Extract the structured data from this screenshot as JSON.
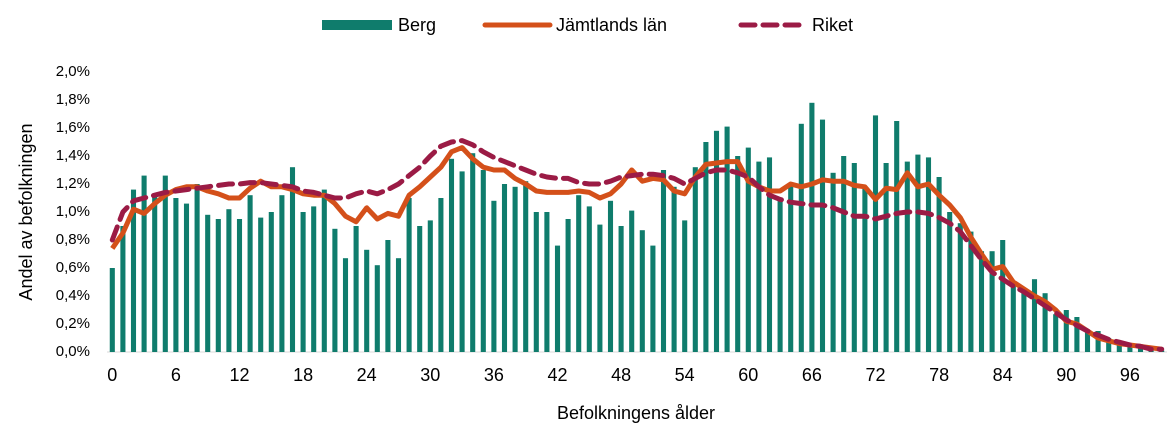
{
  "chart_data": {
    "type": "combo",
    "x_label": "Befolkningens ålder",
    "y_label": "Andel av befolkningen",
    "categories": [
      0,
      null,
      null,
      null,
      null,
      null,
      6,
      null,
      null,
      null,
      null,
      null,
      12,
      null,
      null,
      null,
      null,
      null,
      18,
      null,
      null,
      null,
      null,
      null,
      24,
      null,
      null,
      null,
      null,
      null,
      30,
      null,
      null,
      null,
      null,
      null,
      36,
      null,
      null,
      null,
      null,
      null,
      42,
      null,
      null,
      null,
      null,
      null,
      48,
      null,
      null,
      null,
      null,
      null,
      54,
      null,
      null,
      null,
      null,
      null,
      60,
      null,
      null,
      null,
      null,
      null,
      66,
      null,
      null,
      null,
      null,
      null,
      72,
      null,
      null,
      null,
      null,
      null,
      78,
      null,
      null,
      null,
      null,
      null,
      84,
      null,
      null,
      null,
      null,
      null,
      90,
      null,
      null,
      null,
      null,
      null,
      96,
      null,
      null,
      null
    ],
    "ylim": [
      0,
      2.0
    ],
    "yticks": [
      {
        "value": 0,
        "label": "0,0%"
      },
      {
        "value": 0.2,
        "label": "0,2%"
      },
      {
        "value": 0.4,
        "label": "0,4%"
      },
      {
        "value": 0.6,
        "label": "0,6%"
      },
      {
        "value": 0.8,
        "label": "0,8%"
      },
      {
        "value": 1.0,
        "label": "1,0%"
      },
      {
        "value": 1.2,
        "label": "1,2%"
      },
      {
        "value": 1.4,
        "label": "1,4%"
      },
      {
        "value": 1.6,
        "label": "1,6%"
      },
      {
        "value": 1.8,
        "label": "1,8%"
      },
      {
        "value": 2.0,
        "label": "2,0%"
      }
    ],
    "legend": "top",
    "series": [
      {
        "name": "Berg",
        "type": "bar",
        "color": "#0f7c6c",
        "values": [
          0.6,
          0.9,
          1.16,
          1.26,
          1.12,
          1.26,
          1.1,
          1.06,
          1.2,
          0.98,
          0.95,
          1.02,
          0.95,
          1.12,
          0.96,
          1.0,
          1.12,
          1.32,
          1.0,
          1.04,
          1.16,
          0.88,
          0.67,
          0.9,
          0.73,
          0.62,
          0.8,
          0.67,
          1.1,
          0.9,
          0.94,
          1.1,
          1.38,
          1.29,
          1.42,
          1.3,
          1.08,
          1.2,
          1.18,
          1.22,
          1.0,
          1.0,
          0.76,
          0.95,
          1.12,
          1.04,
          0.91,
          1.08,
          0.9,
          1.01,
          0.87,
          0.76,
          1.3,
          1.18,
          0.94,
          1.32,
          1.5,
          1.58,
          1.61,
          1.4,
          1.46,
          1.36,
          1.39,
          1.1,
          1.2,
          1.63,
          1.78,
          1.66,
          1.28,
          1.4,
          1.35,
          1.18,
          1.69,
          1.35,
          1.65,
          1.36,
          1.41,
          1.39,
          1.25,
          1.0,
          0.92,
          0.86,
          0.72,
          0.72,
          0.8,
          0.5,
          0.45,
          0.52,
          0.42,
          0.27,
          0.3,
          0.25,
          0.14,
          0.15,
          0.1,
          0.07,
          0.05,
          0.03,
          0.02,
          0.01
        ]
      },
      {
        "name": "Jämtlands län",
        "type": "line",
        "style": "solid",
        "color": "#d4501a",
        "values": [
          0.74,
          0.85,
          1.02,
          0.99,
          1.06,
          1.12,
          1.16,
          1.18,
          1.18,
          1.15,
          1.13,
          1.1,
          1.1,
          1.17,
          1.22,
          1.18,
          1.18,
          1.16,
          1.13,
          1.12,
          1.12,
          1.06,
          0.97,
          0.93,
          1.03,
          0.95,
          0.99,
          0.97,
          1.12,
          1.18,
          1.25,
          1.32,
          1.43,
          1.46,
          1.38,
          1.32,
          1.3,
          1.3,
          1.24,
          1.2,
          1.15,
          1.14,
          1.14,
          1.14,
          1.15,
          1.14,
          1.1,
          1.13,
          1.2,
          1.3,
          1.22,
          1.24,
          1.23,
          1.15,
          1.13,
          1.25,
          1.34,
          1.35,
          1.36,
          1.36,
          1.22,
          1.18,
          1.15,
          1.15,
          1.2,
          1.18,
          1.2,
          1.23,
          1.22,
          1.22,
          1.19,
          1.18,
          1.09,
          1.17,
          1.16,
          1.28,
          1.18,
          1.2,
          1.12,
          1.05,
          0.96,
          0.82,
          0.7,
          0.59,
          0.61,
          0.5,
          0.45,
          0.4,
          0.36,
          0.3,
          0.22,
          0.2,
          0.15,
          0.1,
          0.08,
          0.06,
          0.05,
          0.04,
          0.03,
          0.02
        ]
      },
      {
        "name": "Riket",
        "type": "line",
        "style": "dashed",
        "color": "#9b1b45",
        "values": [
          0.8,
          1.0,
          1.08,
          1.1,
          1.12,
          1.14,
          1.15,
          1.16,
          1.17,
          1.18,
          1.19,
          1.2,
          1.2,
          1.21,
          1.21,
          1.2,
          1.19,
          1.18,
          1.15,
          1.14,
          1.12,
          1.1,
          1.1,
          1.13,
          1.15,
          1.13,
          1.16,
          1.2,
          1.26,
          1.32,
          1.4,
          1.47,
          1.5,
          1.51,
          1.48,
          1.43,
          1.39,
          1.36,
          1.33,
          1.3,
          1.27,
          1.25,
          1.24,
          1.24,
          1.21,
          1.2,
          1.2,
          1.22,
          1.25,
          1.26,
          1.27,
          1.27,
          1.26,
          1.24,
          1.2,
          1.24,
          1.28,
          1.3,
          1.3,
          1.28,
          1.25,
          1.18,
          1.12,
          1.09,
          1.07,
          1.06,
          1.05,
          1.05,
          1.03,
          1.0,
          0.97,
          0.97,
          0.95,
          0.97,
          0.99,
          1.0,
          1.0,
          0.99,
          0.96,
          0.92,
          0.86,
          0.76,
          0.66,
          0.57,
          0.52,
          0.47,
          0.43,
          0.38,
          0.33,
          0.28,
          0.23,
          0.19,
          0.15,
          0.12,
          0.09,
          0.07,
          0.05,
          0.04,
          0.02,
          0.02
        ]
      }
    ]
  }
}
